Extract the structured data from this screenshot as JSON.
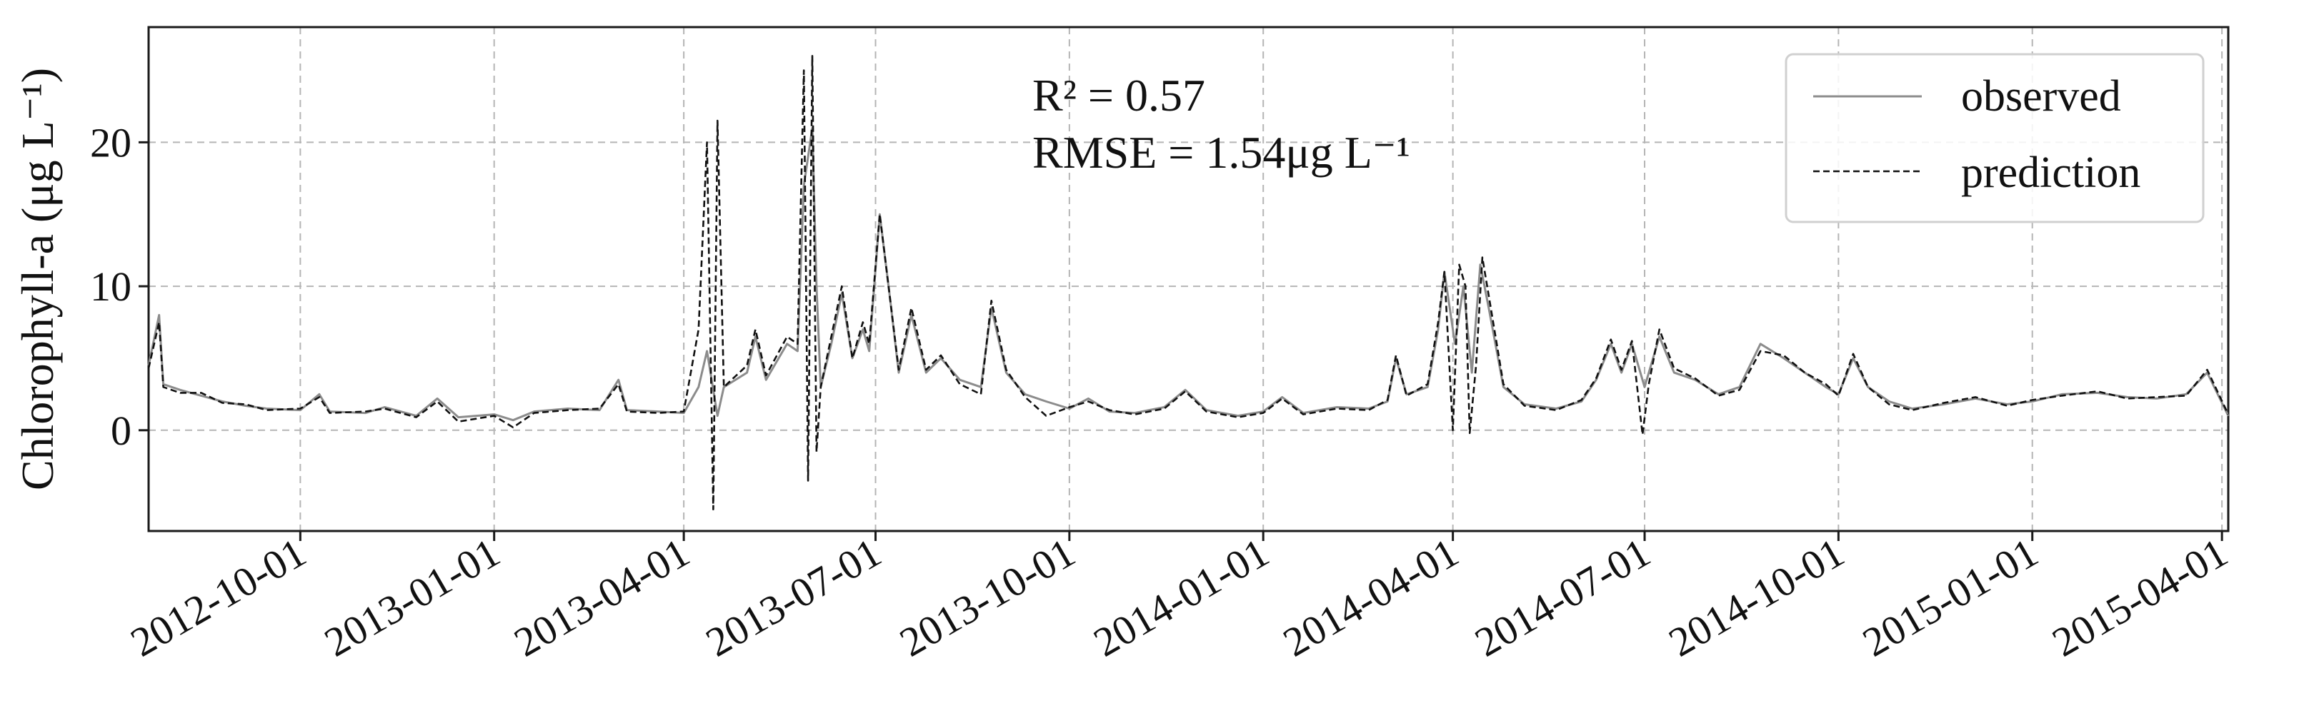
{
  "chart_data": {
    "type": "line",
    "title": "",
    "xlabel": "",
    "ylabel": "Chlorophyll-a (μg L⁻¹)",
    "xlim": [
      "2012-07-21",
      "2015-04-04"
    ],
    "ylim": [
      -7,
      28
    ],
    "x_ticks": [
      "2012-10-01",
      "2013-01-01",
      "2013-04-01",
      "2013-07-01",
      "2013-10-01",
      "2014-01-01",
      "2014-04-01",
      "2014-07-01",
      "2014-10-01",
      "2015-01-01",
      "2015-04-01"
    ],
    "y_ticks": [
      0,
      10,
      20
    ],
    "grid": true,
    "legend_position": "top-right",
    "annotations": [
      "R² = 0.57",
      "RMSE = 1.54μg L⁻¹"
    ],
    "series": [
      {
        "name": "observed",
        "color": "#8c8c8c",
        "style": "solid",
        "points": [
          [
            "2012-07-21",
            4.5
          ],
          [
            "2012-07-26",
            8.0
          ],
          [
            "2012-07-28",
            3.2
          ],
          [
            "2012-08-05",
            2.8
          ],
          [
            "2012-08-15",
            2.4
          ],
          [
            "2012-08-25",
            2.0
          ],
          [
            "2012-09-05",
            1.7
          ],
          [
            "2012-09-15",
            1.5
          ],
          [
            "2012-10-01",
            1.4
          ],
          [
            "2012-10-10",
            2.5
          ],
          [
            "2012-10-15",
            1.3
          ],
          [
            "2012-11-01",
            1.2
          ],
          [
            "2012-11-10",
            1.6
          ],
          [
            "2012-11-25",
            1.0
          ],
          [
            "2012-12-05",
            2.2
          ],
          [
            "2012-12-15",
            0.9
          ],
          [
            "2013-01-01",
            1.1
          ],
          [
            "2013-01-10",
            0.7
          ],
          [
            "2013-01-20",
            1.3
          ],
          [
            "2013-02-05",
            1.5
          ],
          [
            "2013-02-20",
            1.4
          ],
          [
            "2013-03-01",
            3.5
          ],
          [
            "2013-03-05",
            1.4
          ],
          [
            "2013-03-20",
            1.3
          ],
          [
            "2013-04-01",
            1.2
          ],
          [
            "2013-04-08",
            3.0
          ],
          [
            "2013-04-12",
            5.5
          ],
          [
            "2013-04-17",
            1.0
          ],
          [
            "2013-04-20",
            3.0
          ],
          [
            "2013-05-01",
            4.0
          ],
          [
            "2013-05-05",
            6.5
          ],
          [
            "2013-05-10",
            3.5
          ],
          [
            "2013-05-20",
            6.0
          ],
          [
            "2013-05-25",
            5.5
          ],
          [
            "2013-05-28",
            17.0
          ],
          [
            "2013-06-01",
            21.0
          ],
          [
            "2013-06-03",
            10.0
          ],
          [
            "2013-06-05",
            3.0
          ],
          [
            "2013-06-10",
            6.0
          ],
          [
            "2013-06-15",
            9.5
          ],
          [
            "2013-06-20",
            5.0
          ],
          [
            "2013-06-25",
            7.0
          ],
          [
            "2013-06-28",
            5.5
          ],
          [
            "2013-07-03",
            15.0
          ],
          [
            "2013-07-08",
            9.0
          ],
          [
            "2013-07-12",
            4.0
          ],
          [
            "2013-07-18",
            8.0
          ],
          [
            "2013-07-25",
            4.0
          ],
          [
            "2013-08-01",
            5.0
          ],
          [
            "2013-08-10",
            3.5
          ],
          [
            "2013-08-20",
            3.0
          ],
          [
            "2013-08-25",
            8.5
          ],
          [
            "2013-09-01",
            4.0
          ],
          [
            "2013-09-10",
            2.5
          ],
          [
            "2013-09-20",
            2.0
          ],
          [
            "2013-10-01",
            1.5
          ],
          [
            "2013-10-10",
            2.2
          ],
          [
            "2013-10-20",
            1.3
          ],
          [
            "2013-11-01",
            1.2
          ],
          [
            "2013-11-15",
            1.6
          ],
          [
            "2013-11-25",
            2.8
          ],
          [
            "2013-12-05",
            1.4
          ],
          [
            "2013-12-20",
            1.0
          ],
          [
            "2014-01-01",
            1.3
          ],
          [
            "2014-01-10",
            2.3
          ],
          [
            "2014-01-20",
            1.2
          ],
          [
            "2014-02-05",
            1.6
          ],
          [
            "2014-02-20",
            1.5
          ],
          [
            "2014-03-01",
            2.0
          ],
          [
            "2014-03-05",
            5.0
          ],
          [
            "2014-03-10",
            2.5
          ],
          [
            "2014-03-20",
            3.0
          ],
          [
            "2014-03-25",
            7.0
          ],
          [
            "2014-03-28",
            11.0
          ],
          [
            "2014-04-02",
            6.0
          ],
          [
            "2014-04-06",
            10.0
          ],
          [
            "2014-04-10",
            4.0
          ],
          [
            "2014-04-14",
            11.5
          ],
          [
            "2014-04-18",
            8.5
          ],
          [
            "2014-04-25",
            3.0
          ],
          [
            "2014-05-05",
            1.8
          ],
          [
            "2014-05-20",
            1.5
          ],
          [
            "2014-06-01",
            2.0
          ],
          [
            "2014-06-08",
            3.5
          ],
          [
            "2014-06-15",
            6.0
          ],
          [
            "2014-06-20",
            4.0
          ],
          [
            "2014-06-25",
            6.0
          ],
          [
            "2014-07-01",
            3.0
          ],
          [
            "2014-07-08",
            6.5
          ],
          [
            "2014-07-15",
            4.0
          ],
          [
            "2014-07-25",
            3.5
          ],
          [
            "2014-08-05",
            2.5
          ],
          [
            "2014-08-15",
            3.0
          ],
          [
            "2014-08-25",
            6.0
          ],
          [
            "2014-09-05",
            5.0
          ],
          [
            "2014-09-15",
            4.0
          ],
          [
            "2014-09-25",
            3.0
          ],
          [
            "2014-10-01",
            2.5
          ],
          [
            "2014-10-08",
            5.0
          ],
          [
            "2014-10-15",
            3.0
          ],
          [
            "2014-10-25",
            2.0
          ],
          [
            "2014-11-05",
            1.5
          ],
          [
            "2014-11-20",
            1.8
          ],
          [
            "2014-12-05",
            2.2
          ],
          [
            "2014-12-20",
            1.8
          ],
          [
            "2015-01-01",
            2.0
          ],
          [
            "2015-01-15",
            2.5
          ],
          [
            "2015-02-01",
            2.6
          ],
          [
            "2015-02-15",
            2.3
          ],
          [
            "2015-03-01",
            2.2
          ],
          [
            "2015-03-15",
            2.5
          ],
          [
            "2015-03-25",
            4.0
          ],
          [
            "2015-04-04",
            1.0
          ]
        ]
      },
      {
        "name": "prediction",
        "color": "#111111",
        "style": "dashed",
        "points": [
          [
            "2012-07-21",
            4.3
          ],
          [
            "2012-07-26",
            7.5
          ],
          [
            "2012-07-28",
            3.0
          ],
          [
            "2012-08-05",
            2.6
          ],
          [
            "2012-08-15",
            2.6
          ],
          [
            "2012-08-25",
            1.9
          ],
          [
            "2012-09-05",
            1.8
          ],
          [
            "2012-09-15",
            1.4
          ],
          [
            "2012-10-01",
            1.5
          ],
          [
            "2012-10-10",
            2.3
          ],
          [
            "2012-10-15",
            1.2
          ],
          [
            "2012-11-01",
            1.3
          ],
          [
            "2012-11-10",
            1.5
          ],
          [
            "2012-11-25",
            0.9
          ],
          [
            "2012-12-05",
            2.0
          ],
          [
            "2012-12-15",
            0.6
          ],
          [
            "2013-01-01",
            1.0
          ],
          [
            "2013-01-10",
            0.2
          ],
          [
            "2013-01-20",
            1.2
          ],
          [
            "2013-02-05",
            1.4
          ],
          [
            "2013-02-20",
            1.5
          ],
          [
            "2013-03-01",
            3.2
          ],
          [
            "2013-03-05",
            1.3
          ],
          [
            "2013-03-20",
            1.2
          ],
          [
            "2013-04-01",
            1.3
          ],
          [
            "2013-04-08",
            7.0
          ],
          [
            "2013-04-12",
            20.0
          ],
          [
            "2013-04-15",
            -5.5
          ],
          [
            "2013-04-17",
            21.5
          ],
          [
            "2013-04-20",
            3.0
          ],
          [
            "2013-05-01",
            4.5
          ],
          [
            "2013-05-05",
            7.0
          ],
          [
            "2013-05-10",
            3.8
          ],
          [
            "2013-05-20",
            6.5
          ],
          [
            "2013-05-25",
            6.0
          ],
          [
            "2013-05-28",
            25.0
          ],
          [
            "2013-05-30",
            -3.5
          ],
          [
            "2013-06-01",
            26.0
          ],
          [
            "2013-06-03",
            -1.5
          ],
          [
            "2013-06-05",
            3.0
          ],
          [
            "2013-06-10",
            6.5
          ],
          [
            "2013-06-15",
            10.0
          ],
          [
            "2013-06-20",
            5.0
          ],
          [
            "2013-06-25",
            7.5
          ],
          [
            "2013-06-28",
            6.0
          ],
          [
            "2013-07-03",
            15.0
          ],
          [
            "2013-07-08",
            9.0
          ],
          [
            "2013-07-12",
            4.2
          ],
          [
            "2013-07-18",
            8.5
          ],
          [
            "2013-07-25",
            4.2
          ],
          [
            "2013-08-01",
            5.2
          ],
          [
            "2013-08-10",
            3.2
          ],
          [
            "2013-08-20",
            2.5
          ],
          [
            "2013-08-25",
            9.0
          ],
          [
            "2013-09-01",
            4.2
          ],
          [
            "2013-09-10",
            2.3
          ],
          [
            "2013-09-20",
            1.0
          ],
          [
            "2013-10-01",
            1.6
          ],
          [
            "2013-10-10",
            2.0
          ],
          [
            "2013-10-20",
            1.4
          ],
          [
            "2013-11-01",
            1.1
          ],
          [
            "2013-11-15",
            1.5
          ],
          [
            "2013-11-25",
            2.7
          ],
          [
            "2013-12-05",
            1.3
          ],
          [
            "2013-12-20",
            0.9
          ],
          [
            "2014-01-01",
            1.2
          ],
          [
            "2014-01-10",
            2.2
          ],
          [
            "2014-01-20",
            1.1
          ],
          [
            "2014-02-05",
            1.5
          ],
          [
            "2014-02-20",
            1.4
          ],
          [
            "2014-03-01",
            2.1
          ],
          [
            "2014-03-05",
            5.2
          ],
          [
            "2014-03-10",
            2.4
          ],
          [
            "2014-03-20",
            3.2
          ],
          [
            "2014-03-25",
            7.5
          ],
          [
            "2014-03-28",
            11.0
          ],
          [
            "2014-04-01",
            0.0
          ],
          [
            "2014-04-04",
            11.5
          ],
          [
            "2014-04-07",
            10.0
          ],
          [
            "2014-04-09",
            -0.2
          ],
          [
            "2014-04-12",
            4.5
          ],
          [
            "2014-04-15",
            12.0
          ],
          [
            "2014-04-19",
            8.5
          ],
          [
            "2014-04-25",
            3.2
          ],
          [
            "2014-05-05",
            1.7
          ],
          [
            "2014-05-20",
            1.4
          ],
          [
            "2014-06-01",
            2.1
          ],
          [
            "2014-06-08",
            3.6
          ],
          [
            "2014-06-15",
            6.3
          ],
          [
            "2014-06-20",
            4.2
          ],
          [
            "2014-06-25",
            6.2
          ],
          [
            "2014-06-30",
            -0.3
          ],
          [
            "2014-07-03",
            3.2
          ],
          [
            "2014-07-08",
            7.0
          ],
          [
            "2014-07-15",
            4.3
          ],
          [
            "2014-07-25",
            3.6
          ],
          [
            "2014-08-05",
            2.4
          ],
          [
            "2014-08-15",
            2.8
          ],
          [
            "2014-08-25",
            5.5
          ],
          [
            "2014-09-05",
            5.2
          ],
          [
            "2014-09-15",
            4.0
          ],
          [
            "2014-09-25",
            3.2
          ],
          [
            "2014-10-01",
            2.4
          ],
          [
            "2014-10-08",
            5.3
          ],
          [
            "2014-10-15",
            3.0
          ],
          [
            "2014-10-25",
            1.8
          ],
          [
            "2014-11-05",
            1.4
          ],
          [
            "2014-11-20",
            1.9
          ],
          [
            "2014-12-05",
            2.3
          ],
          [
            "2014-12-20",
            1.7
          ],
          [
            "2015-01-01",
            2.1
          ],
          [
            "2015-01-15",
            2.4
          ],
          [
            "2015-02-01",
            2.7
          ],
          [
            "2015-02-15",
            2.2
          ],
          [
            "2015-03-01",
            2.3
          ],
          [
            "2015-03-15",
            2.4
          ],
          [
            "2015-03-25",
            4.2
          ],
          [
            "2015-04-04",
            1.1
          ]
        ]
      }
    ]
  }
}
